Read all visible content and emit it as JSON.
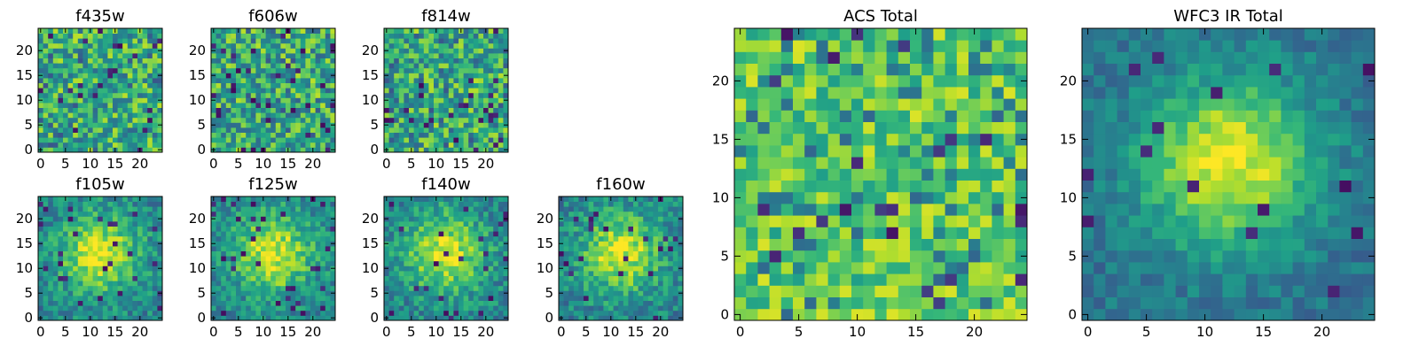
{
  "chart_data": [
    {
      "type": "heatmap",
      "title": "f435w",
      "grid_size": 25,
      "x_ticks": [
        0,
        5,
        10,
        15,
        20
      ],
      "y_ticks": [
        0,
        5,
        10,
        15,
        20
      ],
      "xlim": [
        -0.5,
        24.5
      ],
      "ylim": [
        -0.5,
        24.5
      ],
      "pattern": "noise",
      "seed": 435,
      "colormap": "viridis"
    },
    {
      "type": "heatmap",
      "title": "f606w",
      "grid_size": 25,
      "x_ticks": [
        0,
        5,
        10,
        15,
        20
      ],
      "y_ticks": [
        0,
        5,
        10,
        15,
        20
      ],
      "xlim": [
        -0.5,
        24.5
      ],
      "ylim": [
        -0.5,
        24.5
      ],
      "pattern": "noise",
      "seed": 606,
      "colormap": "viridis"
    },
    {
      "type": "heatmap",
      "title": "f814w",
      "grid_size": 25,
      "x_ticks": [
        0,
        5,
        10,
        15,
        20
      ],
      "y_ticks": [
        0,
        5,
        10,
        15,
        20
      ],
      "xlim": [
        -0.5,
        24.5
      ],
      "ylim": [
        -0.5,
        24.5
      ],
      "pattern": "noise",
      "seed": 814,
      "colormap": "viridis"
    },
    {
      "type": "heatmap",
      "title": "f105w",
      "grid_size": 25,
      "x_ticks": [
        0,
        5,
        10,
        15,
        20
      ],
      "y_ticks": [
        0,
        5,
        10,
        15,
        20
      ],
      "xlim": [
        -0.5,
        24.5
      ],
      "ylim": [
        -0.5,
        24.5
      ],
      "pattern": "source",
      "seed": 105,
      "colormap": "viridis"
    },
    {
      "type": "heatmap",
      "title": "f125w",
      "grid_size": 25,
      "x_ticks": [
        0,
        5,
        10,
        15,
        20
      ],
      "y_ticks": [
        0,
        5,
        10,
        15,
        20
      ],
      "xlim": [
        -0.5,
        24.5
      ],
      "ylim": [
        -0.5,
        24.5
      ],
      "pattern": "source",
      "seed": 125,
      "colormap": "viridis"
    },
    {
      "type": "heatmap",
      "title": "f140w",
      "grid_size": 25,
      "x_ticks": [
        0,
        5,
        10,
        15,
        20
      ],
      "y_ticks": [
        0,
        5,
        10,
        15,
        20
      ],
      "xlim": [
        -0.5,
        24.5
      ],
      "ylim": [
        -0.5,
        24.5
      ],
      "pattern": "source",
      "seed": 140,
      "colormap": "viridis"
    },
    {
      "type": "heatmap",
      "title": "f160w",
      "grid_size": 25,
      "x_ticks": [
        0,
        5,
        10,
        15,
        20
      ],
      "y_ticks": [
        0,
        5,
        10,
        15,
        20
      ],
      "xlim": [
        -0.5,
        24.5
      ],
      "ylim": [
        -0.5,
        24.5
      ],
      "pattern": "source",
      "seed": 160,
      "colormap": "viridis"
    },
    {
      "type": "heatmap",
      "title": "ACS Total",
      "grid_size": 25,
      "x_ticks": [
        0,
        5,
        10,
        15,
        20
      ],
      "y_ticks": [
        0,
        5,
        10,
        15,
        20
      ],
      "xlim": [
        -0.5,
        24.5
      ],
      "ylim": [
        -0.5,
        24.5
      ],
      "pattern": "acs",
      "seed": 999,
      "colormap": "viridis"
    },
    {
      "type": "heatmap",
      "title": "WFC3 IR Total",
      "grid_size": 25,
      "x_ticks": [
        0,
        5,
        10,
        15,
        20
      ],
      "y_ticks": [
        0,
        5,
        10,
        15,
        20
      ],
      "xlim": [
        -0.5,
        24.5
      ],
      "ylim": [
        -0.5,
        24.5
      ],
      "pattern": "ir",
      "seed": 777,
      "colormap": "viridis"
    }
  ]
}
